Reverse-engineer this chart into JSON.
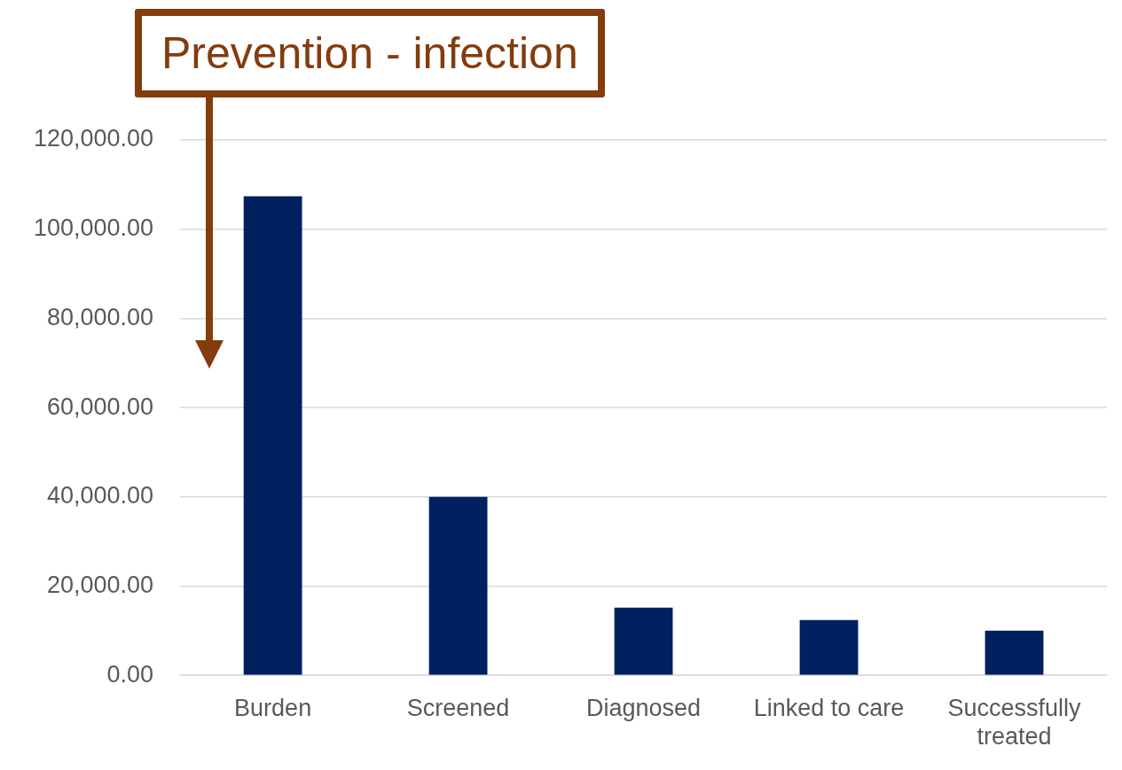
{
  "chart_data": {
    "type": "bar",
    "categories": [
      "Burden",
      "Screened",
      "Diagnosed",
      "Linked to care",
      "Successfully treated"
    ],
    "values": [
      107400,
      40000,
      15200,
      12400,
      10000
    ],
    "color": "#002060",
    "ylim": [
      0,
      120000
    ],
    "yticks": [
      {
        "value": 0,
        "label": "0.00"
      },
      {
        "value": 20000,
        "label": "20,000.00"
      },
      {
        "value": 40000,
        "label": "40,000.00"
      },
      {
        "value": 60000,
        "label": "60,000.00"
      },
      {
        "value": 80000,
        "label": "80,000.00"
      },
      {
        "value": 100000,
        "label": "100,000.00"
      },
      {
        "value": 120000,
        "label": "120,000.00"
      }
    ],
    "grid": "y",
    "legend": false,
    "annotations": [
      "Prevention - infection"
    ]
  }
}
